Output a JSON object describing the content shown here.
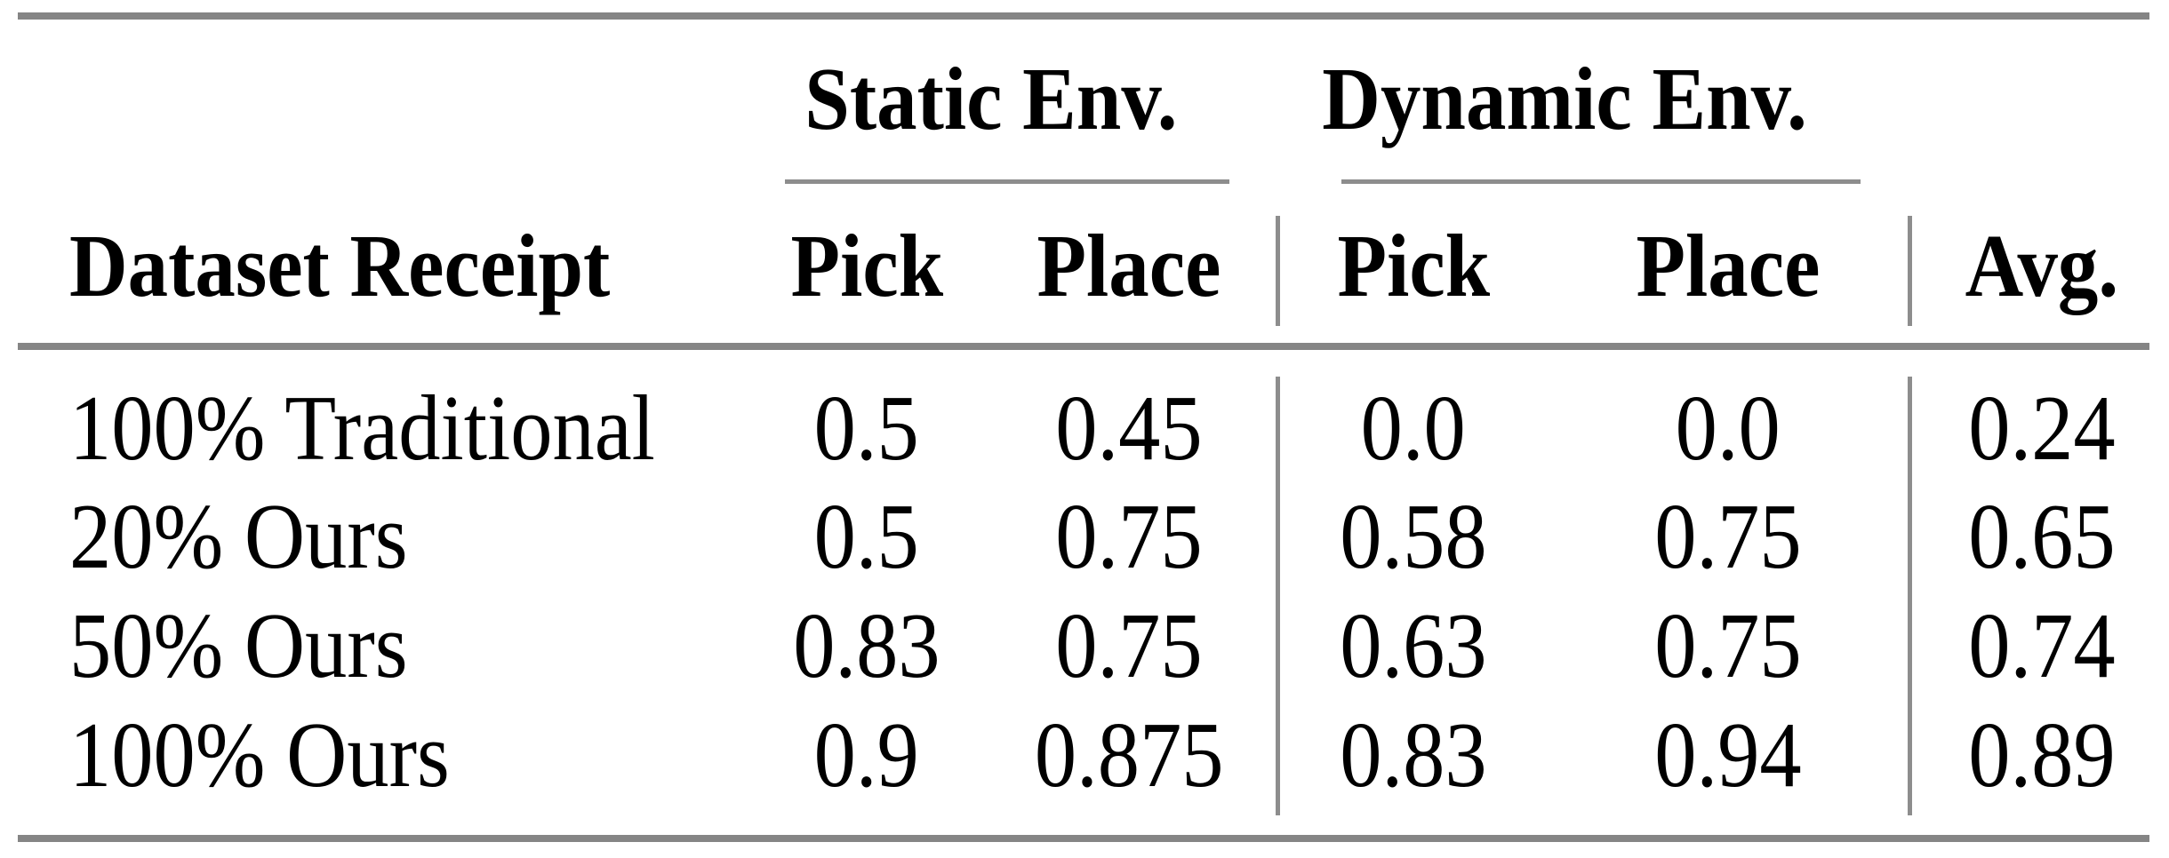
{
  "colors": {
    "rule_gray": "#858585",
    "thin_rule_gray": "#8d8d8d",
    "text": "#000000",
    "background": "#ffffff"
  },
  "table": {
    "row_header": "Dataset Receipt",
    "groups": [
      {
        "label": "Static Env.",
        "columns": [
          "Pick",
          "Place"
        ]
      },
      {
        "label": "Dynamic Env.",
        "columns": [
          "Pick",
          "Place"
        ]
      }
    ],
    "avg_header": "Avg.",
    "rows": [
      {
        "label": "100% Traditional",
        "values": [
          "0.5",
          "0.45",
          "0.0",
          "0.0",
          "0.24"
        ]
      },
      {
        "label": "20% Ours",
        "values": [
          "0.5",
          "0.75",
          "0.58",
          "0.75",
          "0.65"
        ]
      },
      {
        "label": "50% Ours",
        "values": [
          "0.83",
          "0.75",
          "0.63",
          "0.75",
          "0.74"
        ]
      },
      {
        "label": "100% Ours",
        "values": [
          "0.9",
          "0.875",
          "0.83",
          "0.94",
          "0.89"
        ]
      }
    ]
  },
  "chart_data": {
    "type": "table",
    "title": "",
    "columns": [
      "Dataset Receipt",
      "Static Env. Pick",
      "Static Env. Place",
      "Dynamic Env. Pick",
      "Dynamic Env. Place",
      "Avg."
    ],
    "rows": [
      [
        "100% Traditional",
        0.5,
        0.45,
        0.0,
        0.0,
        0.24
      ],
      [
        "20% Ours",
        0.5,
        0.75,
        0.58,
        0.75,
        0.65
      ],
      [
        "50% Ours",
        0.83,
        0.75,
        0.63,
        0.75,
        0.74
      ],
      [
        "100% Ours",
        0.9,
        0.875,
        0.83,
        0.94,
        0.89
      ]
    ]
  }
}
